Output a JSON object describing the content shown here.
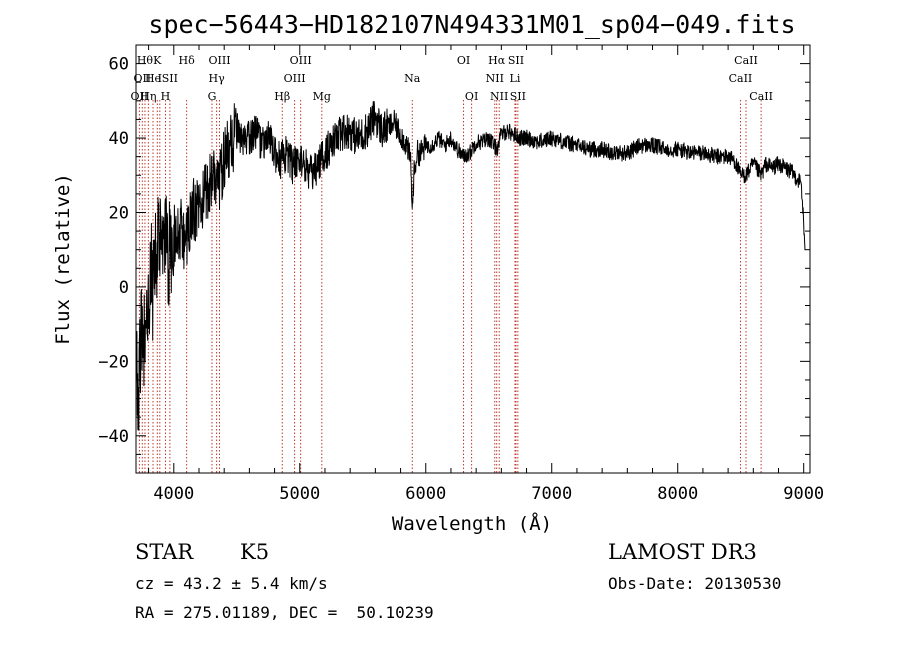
{
  "chart_data": {
    "type": "line",
    "title": "spec−56443−HD182107N494331M01_sp04−049.fits",
    "xlabel": "Wavelength (Å)",
    "ylabel": "Flux (relative)",
    "xlim": [
      3700,
      9050
    ],
    "ylim": [
      -50,
      65
    ],
    "xticks": [
      4000,
      5000,
      6000,
      7000,
      8000,
      9000
    ],
    "xtick_labels": [
      "4000",
      "5000",
      "6000",
      "7000",
      "8000",
      "9000"
    ],
    "yticks": [
      -40,
      -20,
      0,
      20,
      40,
      60
    ],
    "ytick_labels": [
      "−40",
      "−20",
      "0",
      "20",
      "40",
      "60"
    ],
    "grid": false,
    "series": [
      {
        "name": "flux",
        "x": [
          3700,
          3720,
          3740,
          3760,
          3780,
          3800,
          3820,
          3840,
          3860,
          3880,
          3900,
          3920,
          3940,
          3960,
          3980,
          4000,
          4050,
          4100,
          4150,
          4200,
          4250,
          4300,
          4350,
          4400,
          4450,
          4500,
          4550,
          4600,
          4650,
          4700,
          4750,
          4800,
          4850,
          4900,
          4950,
          5000,
          5050,
          5100,
          5150,
          5200,
          5250,
          5300,
          5350,
          5400,
          5450,
          5500,
          5550,
          5600,
          5650,
          5700,
          5750,
          5800,
          5850,
          5880,
          5893,
          5905,
          5930,
          5960,
          6000,
          6050,
          6100,
          6150,
          6200,
          6250,
          6300,
          6350,
          6400,
          6450,
          6500,
          6563,
          6600,
          6650,
          6700,
          6750,
          6800,
          6900,
          7000,
          7100,
          7200,
          7300,
          7400,
          7500,
          7600,
          7700,
          7800,
          7900,
          8000,
          8100,
          8200,
          8300,
          8400,
          8450,
          8498,
          8542,
          8600,
          8662,
          8700,
          8750,
          8800,
          8850,
          8900,
          8950,
          8980,
          9000,
          9010
        ],
        "values": [
          -20,
          -28,
          -12,
          -18,
          -8,
          -5,
          5,
          -2,
          8,
          10,
          12,
          6,
          15,
          8,
          10,
          14,
          16,
          12,
          20,
          22,
          24,
          30,
          28,
          34,
          38,
          42,
          38,
          40,
          42,
          38,
          40,
          36,
          34,
          36,
          32,
          35,
          32,
          30,
          33,
          36,
          38,
          40,
          42,
          42,
          40,
          41,
          43,
          46,
          42,
          43,
          44,
          41,
          38,
          34,
          20,
          30,
          36,
          36,
          38,
          38,
          40,
          38,
          40,
          37,
          35,
          36,
          39,
          39,
          40,
          37,
          41,
          42,
          41,
          40,
          40,
          39,
          40,
          39,
          38,
          37,
          37,
          36,
          36,
          38,
          38,
          37,
          37,
          36,
          36,
          35,
          35,
          34,
          30,
          30,
          33,
          30,
          33,
          32,
          33,
          32,
          31,
          29,
          28,
          17,
          8
        ]
      }
    ],
    "line_markers": [
      {
        "wavelength": 3727,
        "row": 2,
        "label": "OII"
      },
      {
        "wavelength": 3750,
        "row": 1,
        "label": "OII"
      },
      {
        "wavelength": 3771,
        "row": 0,
        "label": "Hθ"
      },
      {
        "wavelength": 3798,
        "row": 2,
        "label": "Hη"
      },
      {
        "wavelength": 3835,
        "row": 1,
        "label": "He"
      },
      {
        "wavelength": 3869,
        "row": 0,
        "label": "K"
      },
      {
        "wavelength": 3889,
        "row": 1,
        "label": "I"
      },
      {
        "wavelength": 3934,
        "row": 2,
        "label": "H"
      },
      {
        "wavelength": 3969,
        "row": 1,
        "label": "SII"
      },
      {
        "wavelength": 4102,
        "row": 0,
        "label": "Hδ"
      },
      {
        "wavelength": 4303,
        "row": 2,
        "label": "G"
      },
      {
        "wavelength": 4340,
        "row": 1,
        "label": "Hγ"
      },
      {
        "wavelength": 4363,
        "row": 0,
        "label": "OIII"
      },
      {
        "wavelength": 4861,
        "row": 2,
        "label": "Hβ"
      },
      {
        "wavelength": 4959,
        "row": 1,
        "label": "OIII"
      },
      {
        "wavelength": 5007,
        "row": 0,
        "label": "OIII"
      },
      {
        "wavelength": 5175,
        "row": 2,
        "label": "Mg"
      },
      {
        "wavelength": 5893,
        "row": 1,
        "label": "Na"
      },
      {
        "wavelength": 6300,
        "row": 0,
        "label": "OI"
      },
      {
        "wavelength": 6364,
        "row": 2,
        "label": "OI"
      },
      {
        "wavelength": 6548,
        "row": 1,
        "label": "NII"
      },
      {
        "wavelength": 6563,
        "row": 0,
        "label": "Hα"
      },
      {
        "wavelength": 6583,
        "row": 2,
        "label": "NII"
      },
      {
        "wavelength": 6708,
        "row": 1,
        "label": "Li"
      },
      {
        "wavelength": 6716,
        "row": 0,
        "label": "SII"
      },
      {
        "wavelength": 6731,
        "row": 2,
        "label": "SII"
      },
      {
        "wavelength": 8498,
        "row": 1,
        "label": "CaII"
      },
      {
        "wavelength": 8542,
        "row": 0,
        "label": "CaII"
      },
      {
        "wavelength": 8662,
        "row": 2,
        "label": "CaII"
      }
    ]
  },
  "info": {
    "class": "STAR",
    "subclass": "K5",
    "survey": "LAMOST DR3",
    "redshift": "cz = 43.2 ± 5.4 km/s",
    "obs_date": "Obs-Date: 20130530",
    "coords": "RA = 275.01189, DEC =  50.10239"
  }
}
